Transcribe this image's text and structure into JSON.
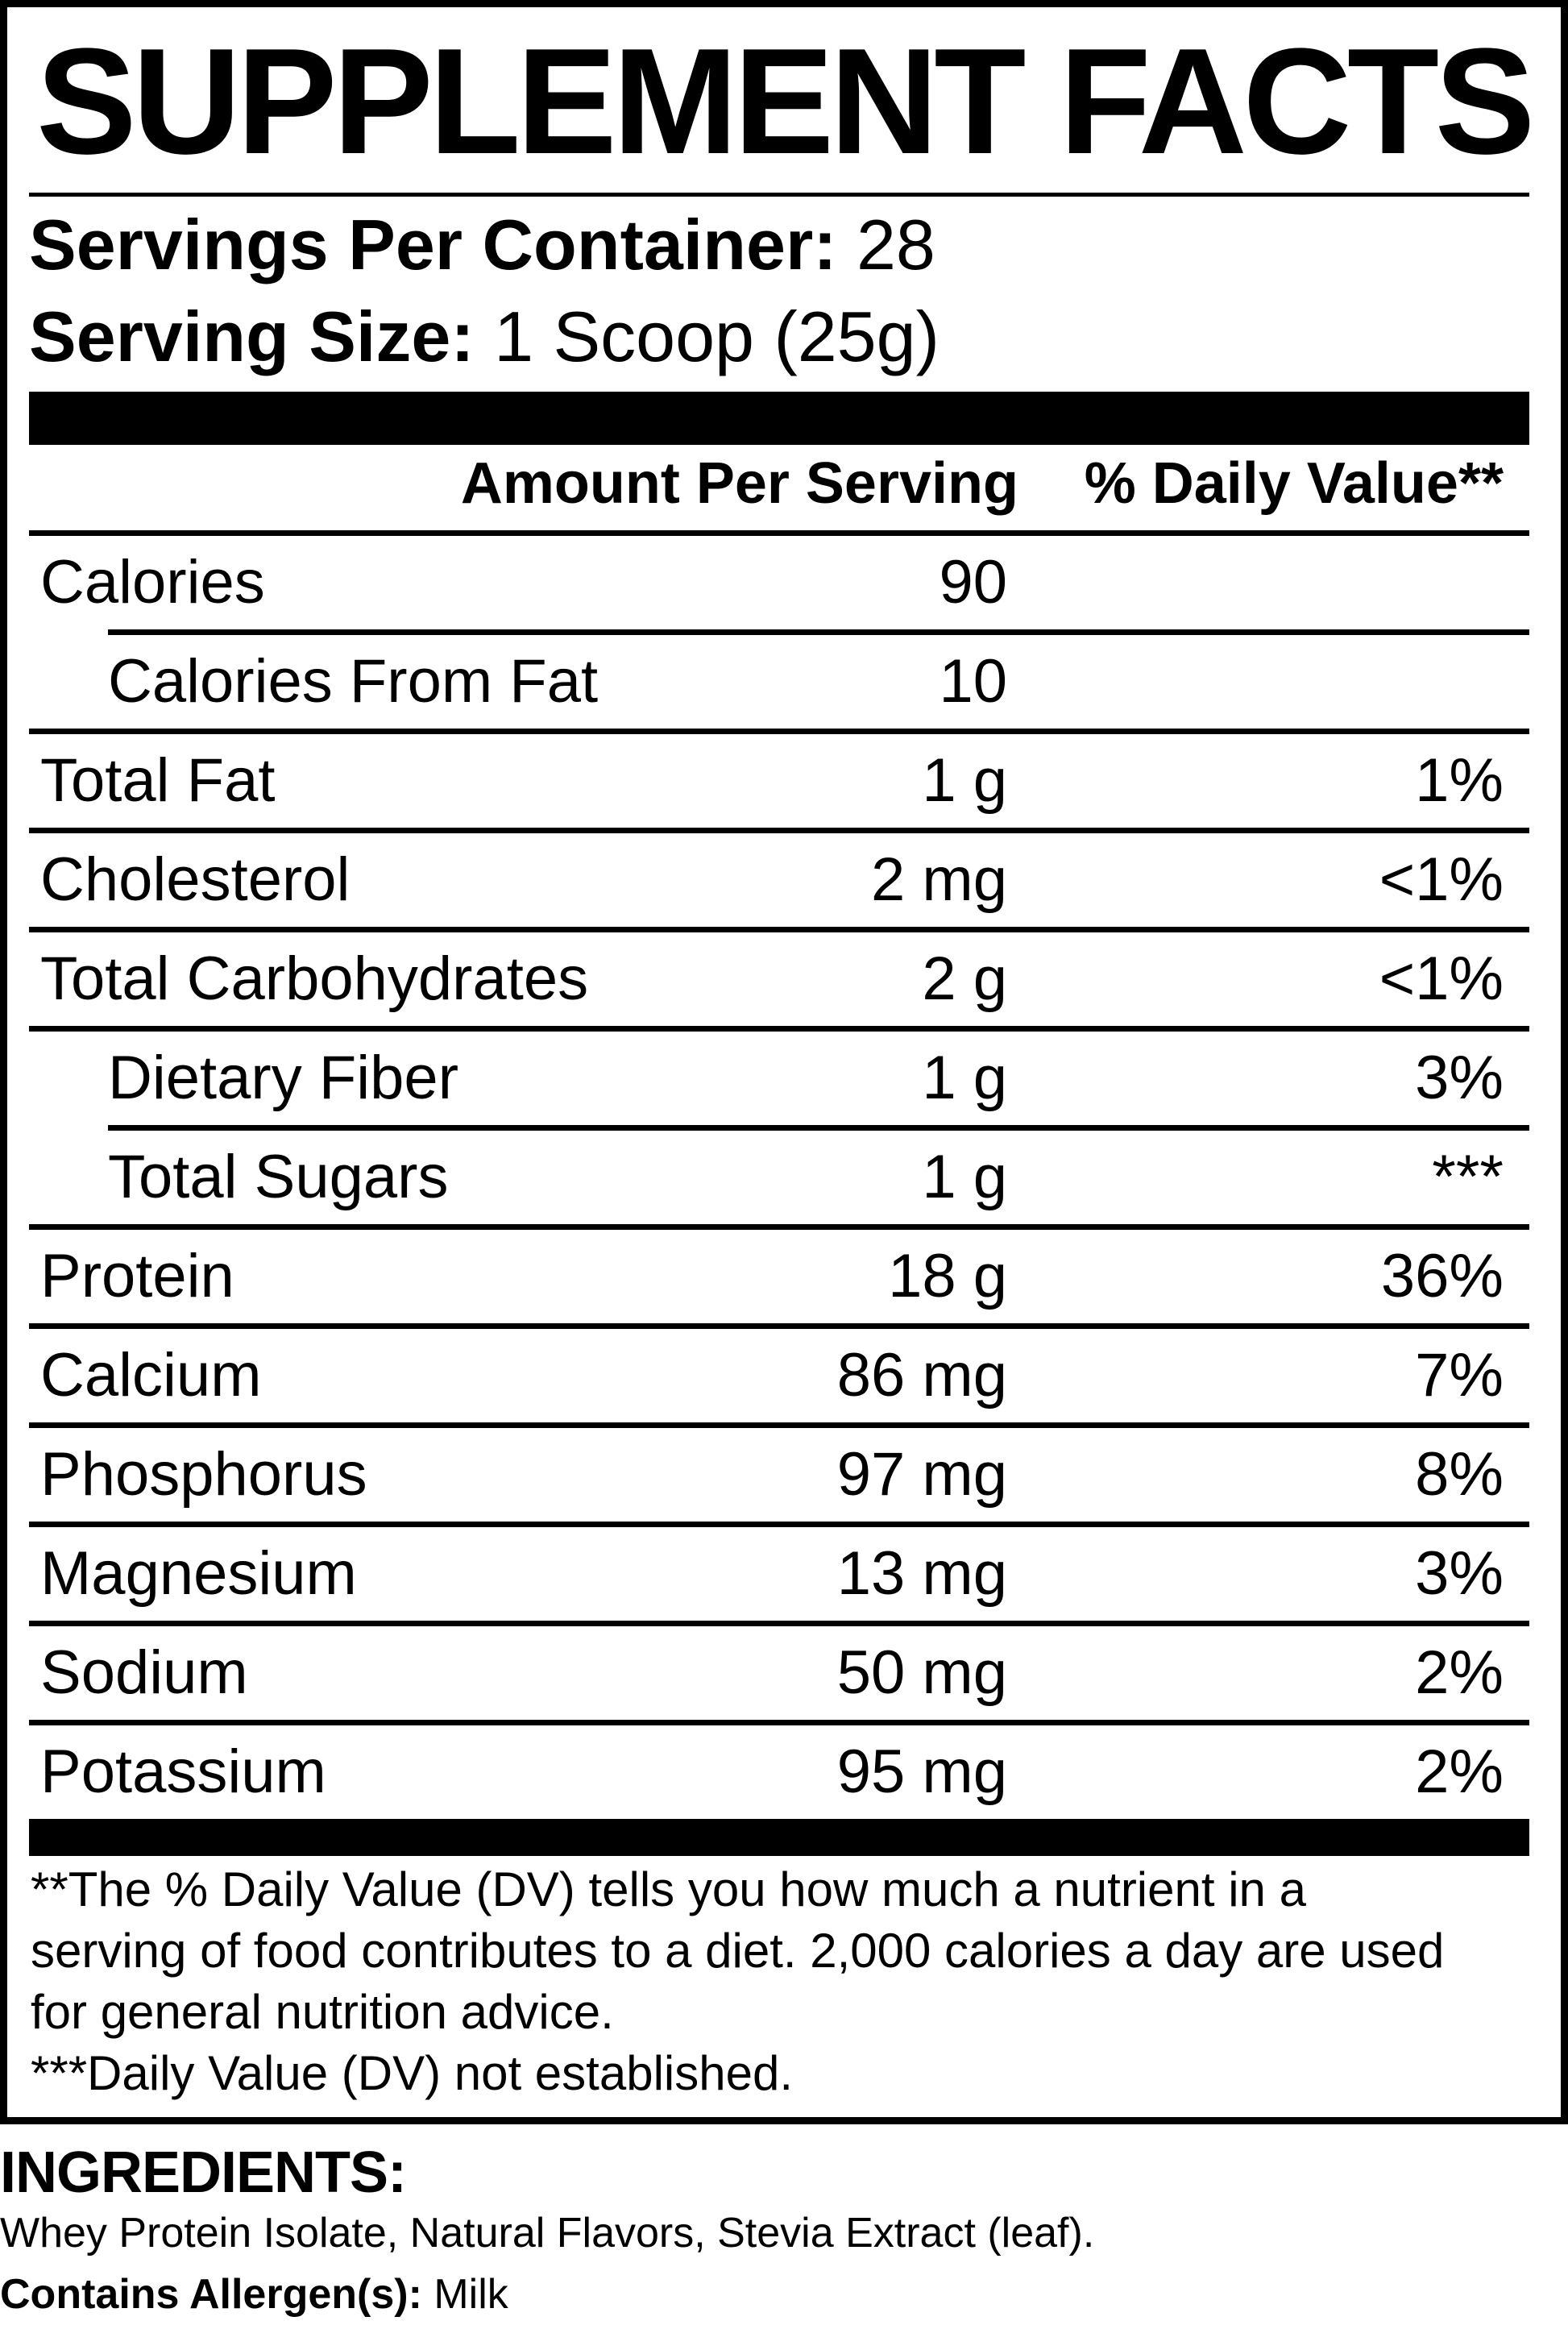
{
  "panel": {
    "title": "SUPPLEMENT FACTS",
    "servings_label": "Servings Per Container:",
    "servings_value": "28",
    "serving_size_label": "Serving Size:",
    "serving_size_value": "1 Scoop (25g)",
    "columns": {
      "amount": "Amount Per Serving",
      "daily_value": "% Daily Value**"
    },
    "rows": [
      {
        "label": "Calories",
        "amount": "90",
        "dv": ""
      },
      {
        "label": "Calories From Fat",
        "amount": "10",
        "dv": ""
      },
      {
        "label": "Total Fat",
        "amount": "1 g",
        "dv": "1%"
      },
      {
        "label": "Cholesterol",
        "amount": "2 mg",
        "dv": "<1%"
      },
      {
        "label": "Total Carbohydrates",
        "amount": "2 g",
        "dv": "<1%"
      },
      {
        "label": "Dietary Fiber",
        "amount": "1 g",
        "dv": "3%"
      },
      {
        "label": "Total Sugars",
        "amount": "1 g",
        "dv": "***"
      },
      {
        "label": "Protein",
        "amount": "18 g",
        "dv": "36%"
      },
      {
        "label": "Calcium",
        "amount": "86 mg",
        "dv": "7%"
      },
      {
        "label": "Phosphorus",
        "amount": "97 mg",
        "dv": "8%"
      },
      {
        "label": "Magnesium",
        "amount": "13 mg",
        "dv": "3%"
      },
      {
        "label": "Sodium",
        "amount": "50 mg",
        "dv": "2%"
      },
      {
        "label": "Potassium",
        "amount": "95 mg",
        "dv": "2%"
      }
    ],
    "footnotes": [
      "**The % Daily Value (DV) tells you how much a nutrient in a serving of food contributes to a diet. 2,000 calories a day are used for general nutrition advice.",
      "***Daily Value (DV) not established."
    ]
  },
  "ingredients": {
    "heading": "INGREDIENTS:",
    "list": "Whey Protein Isolate, Natural Flavors, Stevia Extract (leaf).",
    "allergen_label": "Contains Allergen(s):",
    "allergen_value": "Milk"
  },
  "colors": {
    "ink": "#000000",
    "paper": "#ffffff"
  }
}
